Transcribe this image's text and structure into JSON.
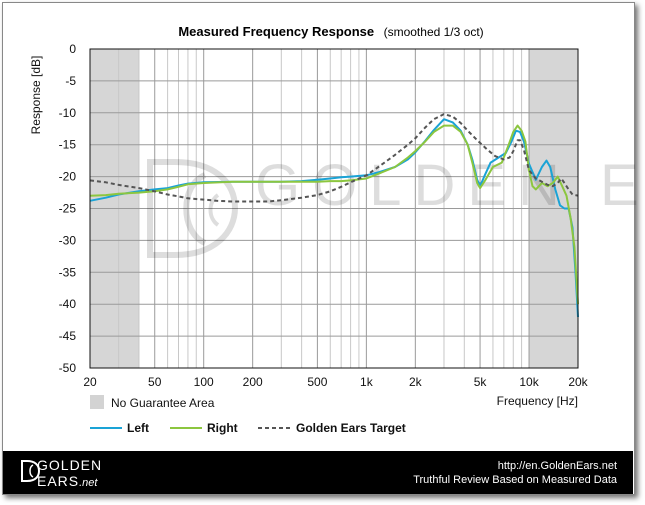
{
  "chart_data": {
    "type": "line",
    "title": "Measured Frequency Response",
    "subtitle": "(smoothed  1/3 oct)",
    "xlabel": "Frequency [Hz]",
    "ylabel": "Response [dB]",
    "xscale": "log",
    "xlim": [
      20,
      20000
    ],
    "ylim": [
      -50,
      0
    ],
    "x_ticks": [
      20,
      50,
      100,
      200,
      500,
      1000,
      2000,
      5000,
      10000,
      20000
    ],
    "x_tick_labels": [
      "20",
      "50",
      "100",
      "200",
      "500",
      "1k",
      "2k",
      "5k",
      "10k",
      "20k"
    ],
    "y_ticks": [
      0,
      -5,
      -10,
      -15,
      -20,
      -25,
      -30,
      -35,
      -40,
      -45,
      -50
    ],
    "grid": true,
    "shaded_regions": [
      [
        20,
        40
      ],
      [
        10000,
        20000
      ]
    ],
    "shaded_label": "No Guarantee Area",
    "series": [
      {
        "name": "Left",
        "color": "#1aa3d6",
        "dash": "none",
        "points": [
          [
            20,
            -23.8
          ],
          [
            25,
            -23.3
          ],
          [
            30,
            -22.8
          ],
          [
            40,
            -22.3
          ],
          [
            50,
            -22.0
          ],
          [
            60,
            -21.8
          ],
          [
            70,
            -21.4
          ],
          [
            80,
            -21.1
          ],
          [
            100,
            -20.9
          ],
          [
            150,
            -20.8
          ],
          [
            200,
            -20.8
          ],
          [
            300,
            -20.8
          ],
          [
            400,
            -20.7
          ],
          [
            500,
            -20.5
          ],
          [
            600,
            -20.3
          ],
          [
            700,
            -20.1
          ],
          [
            800,
            -20.0
          ],
          [
            1000,
            -19.8
          ],
          [
            1200,
            -19.3
          ],
          [
            1500,
            -18.5
          ],
          [
            1800,
            -17.3
          ],
          [
            2000,
            -16.2
          ],
          [
            2300,
            -14.4
          ],
          [
            2600,
            -12.7
          ],
          [
            3000,
            -11.0
          ],
          [
            3400,
            -11.5
          ],
          [
            3800,
            -12.8
          ],
          [
            4200,
            -15.0
          ],
          [
            4500,
            -17.5
          ],
          [
            4800,
            -20.5
          ],
          [
            5000,
            -21.5
          ],
          [
            5300,
            -20.0
          ],
          [
            5800,
            -17.8
          ],
          [
            6500,
            -17.0
          ],
          [
            7200,
            -16.3
          ],
          [
            7800,
            -14.5
          ],
          [
            8300,
            -12.8
          ],
          [
            8800,
            -13.0
          ],
          [
            9300,
            -14.5
          ],
          [
            10000,
            -18.0
          ],
          [
            11000,
            -20.5
          ],
          [
            12000,
            -18.5
          ],
          [
            12800,
            -17.5
          ],
          [
            13500,
            -18.5
          ],
          [
            14500,
            -22.0
          ],
          [
            15500,
            -24.5
          ],
          [
            16500,
            -25.0
          ],
          [
            17500,
            -25.0
          ],
          [
            18500,
            -28.0
          ],
          [
            19300,
            -35.0
          ],
          [
            20000,
            -42.0
          ]
        ]
      },
      {
        "name": "Right",
        "color": "#8cc63f",
        "dash": "none",
        "points": [
          [
            20,
            -23.0
          ],
          [
            25,
            -22.9
          ],
          [
            30,
            -22.7
          ],
          [
            40,
            -22.5
          ],
          [
            50,
            -22.3
          ],
          [
            60,
            -22.0
          ],
          [
            70,
            -21.6
          ],
          [
            80,
            -21.2
          ],
          [
            100,
            -21.0
          ],
          [
            150,
            -20.8
          ],
          [
            200,
            -20.8
          ],
          [
            300,
            -20.8
          ],
          [
            400,
            -20.8
          ],
          [
            500,
            -20.8
          ],
          [
            600,
            -20.7
          ],
          [
            700,
            -20.7
          ],
          [
            800,
            -20.6
          ],
          [
            1000,
            -20.3
          ],
          [
            1200,
            -19.5
          ],
          [
            1500,
            -18.5
          ],
          [
            1800,
            -17.0
          ],
          [
            2000,
            -16.0
          ],
          [
            2300,
            -14.5
          ],
          [
            2600,
            -13.0
          ],
          [
            3000,
            -12.0
          ],
          [
            3400,
            -12.0
          ],
          [
            3800,
            -13.0
          ],
          [
            4200,
            -15.0
          ],
          [
            4500,
            -18.0
          ],
          [
            4800,
            -21.0
          ],
          [
            5000,
            -21.8
          ],
          [
            5400,
            -20.5
          ],
          [
            6000,
            -18.5
          ],
          [
            6800,
            -17.8
          ],
          [
            7500,
            -15.0
          ],
          [
            8000,
            -13.0
          ],
          [
            8500,
            -12.0
          ],
          [
            9000,
            -12.8
          ],
          [
            9500,
            -14.5
          ],
          [
            10000,
            -19.0
          ],
          [
            10500,
            -21.5
          ],
          [
            11000,
            -22.0
          ],
          [
            12000,
            -21.0
          ],
          [
            13000,
            -21.5
          ],
          [
            14000,
            -21.0
          ],
          [
            15000,
            -20.0
          ],
          [
            16000,
            -21.5
          ],
          [
            17000,
            -23.0
          ],
          [
            18000,
            -26.5
          ],
          [
            19000,
            -31.0
          ],
          [
            20000,
            -40.0
          ]
        ]
      },
      {
        "name": "Golden Ears Target",
        "color": "#555555",
        "dash": "4,3",
        "points": [
          [
            20,
            -20.6
          ],
          [
            25,
            -20.9
          ],
          [
            30,
            -21.3
          ],
          [
            40,
            -21.8
          ],
          [
            50,
            -22.3
          ],
          [
            60,
            -22.8
          ],
          [
            70,
            -23.1
          ],
          [
            80,
            -23.4
          ],
          [
            100,
            -23.6
          ],
          [
            120,
            -23.8
          ],
          [
            150,
            -23.9
          ],
          [
            200,
            -23.9
          ],
          [
            250,
            -23.9
          ],
          [
            300,
            -23.7
          ],
          [
            400,
            -23.3
          ],
          [
            500,
            -22.9
          ],
          [
            600,
            -22.3
          ],
          [
            700,
            -21.6
          ],
          [
            800,
            -20.9
          ],
          [
            1000,
            -19.8
          ],
          [
            1200,
            -18.4
          ],
          [
            1500,
            -16.6
          ],
          [
            1800,
            -15.0
          ],
          [
            2000,
            -14.0
          ],
          [
            2300,
            -12.3
          ],
          [
            2600,
            -11.0
          ],
          [
            3000,
            -10.2
          ],
          [
            3400,
            -10.6
          ],
          [
            3800,
            -11.6
          ],
          [
            4200,
            -12.8
          ],
          [
            4800,
            -14.3
          ],
          [
            5500,
            -15.7
          ],
          [
            6200,
            -16.8
          ],
          [
            7000,
            -17.3
          ],
          [
            7600,
            -17.0
          ],
          [
            8000,
            -16.0
          ],
          [
            8500,
            -14.3
          ],
          [
            8800,
            -14.3
          ],
          [
            9300,
            -15.8
          ],
          [
            10000,
            -19.0
          ],
          [
            11000,
            -20.3
          ],
          [
            12000,
            -20.8
          ],
          [
            13000,
            -21.3
          ],
          [
            14000,
            -21.5
          ],
          [
            15000,
            -21.0
          ],
          [
            15800,
            -20.3
          ],
          [
            16500,
            -21.0
          ],
          [
            17500,
            -22.0
          ],
          [
            18500,
            -22.8
          ],
          [
            20000,
            -23.0
          ]
        ]
      }
    ]
  },
  "legend": {
    "shaded_swatch": "No Guarantee Area",
    "items": [
      "Left",
      "Right",
      "Golden Ears Target"
    ]
  },
  "watermark": "GOLDEN EARS",
  "footer": {
    "logo_line1": "GOLDEN",
    "logo_line2": "EARS",
    "logo_net": ".net",
    "url": "http://en.GoldenEars.net",
    "tagline": "Truthful Review Based on Measured Data"
  }
}
